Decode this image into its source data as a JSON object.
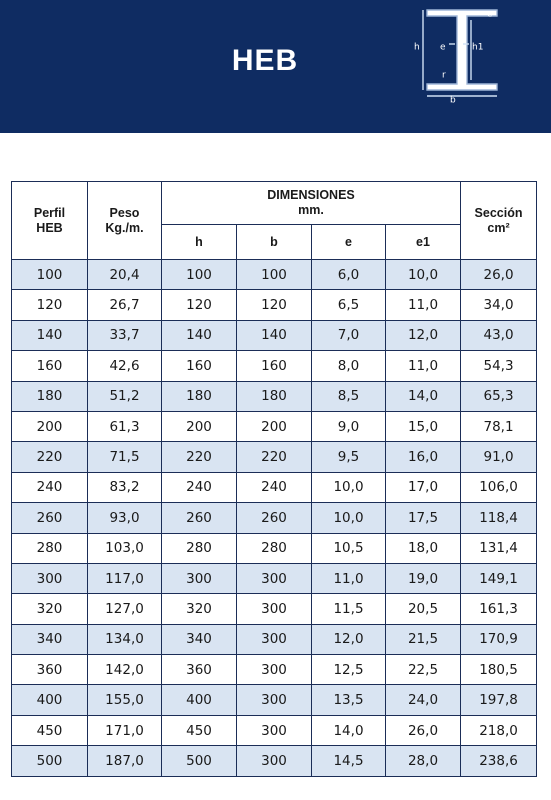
{
  "header": {
    "title": "HEB"
  },
  "diagram": {
    "labels": [
      "e",
      "h",
      "e",
      "h1",
      "r",
      "b"
    ]
  },
  "table": {
    "headers": {
      "perfil": "Perfil HEB",
      "peso": "Peso Kg./m.",
      "dimensiones": "DIMENSIONES",
      "dimensiones_unit": "mm.",
      "seccion": "Sección",
      "seccion_unit": "cm²",
      "sub": [
        "h",
        "b",
        "e",
        "e1"
      ]
    },
    "rows": [
      [
        "100",
        "20,4",
        "100",
        "100",
        "6,0",
        "10,0",
        "26,0"
      ],
      [
        "120",
        "26,7",
        "120",
        "120",
        "6,5",
        "11,0",
        "34,0"
      ],
      [
        "140",
        "33,7",
        "140",
        "140",
        "7,0",
        "12,0",
        "43,0"
      ],
      [
        "160",
        "42,6",
        "160",
        "160",
        "8,0",
        "11,0",
        "54,3"
      ],
      [
        "180",
        "51,2",
        "180",
        "180",
        "8,5",
        "14,0",
        "65,3"
      ],
      [
        "200",
        "61,3",
        "200",
        "200",
        "9,0",
        "15,0",
        "78,1"
      ],
      [
        "220",
        "71,5",
        "220",
        "220",
        "9,5",
        "16,0",
        "91,0"
      ],
      [
        "240",
        "83,2",
        "240",
        "240",
        "10,0",
        "17,0",
        "106,0"
      ],
      [
        "260",
        "93,0",
        "260",
        "260",
        "10,0",
        "17,5",
        "118,4"
      ],
      [
        "280",
        "103,0",
        "280",
        "280",
        "10,5",
        "18,0",
        "131,4"
      ],
      [
        "300",
        "117,0",
        "300",
        "300",
        "11,0",
        "19,0",
        "149,1"
      ],
      [
        "320",
        "127,0",
        "320",
        "300",
        "11,5",
        "20,5",
        "161,3"
      ],
      [
        "340",
        "134,0",
        "340",
        "300",
        "12,0",
        "21,5",
        "170,9"
      ],
      [
        "360",
        "142,0",
        "360",
        "300",
        "12,5",
        "22,5",
        "180,5"
      ],
      [
        "400",
        "155,0",
        "400",
        "300",
        "13,5",
        "24,0",
        "197,8"
      ],
      [
        "450",
        "171,0",
        "450",
        "300",
        "14,0",
        "26,0",
        "218,0"
      ],
      [
        "500",
        "187,0",
        "500",
        "300",
        "14,5",
        "28,0",
        "238,6"
      ]
    ]
  }
}
